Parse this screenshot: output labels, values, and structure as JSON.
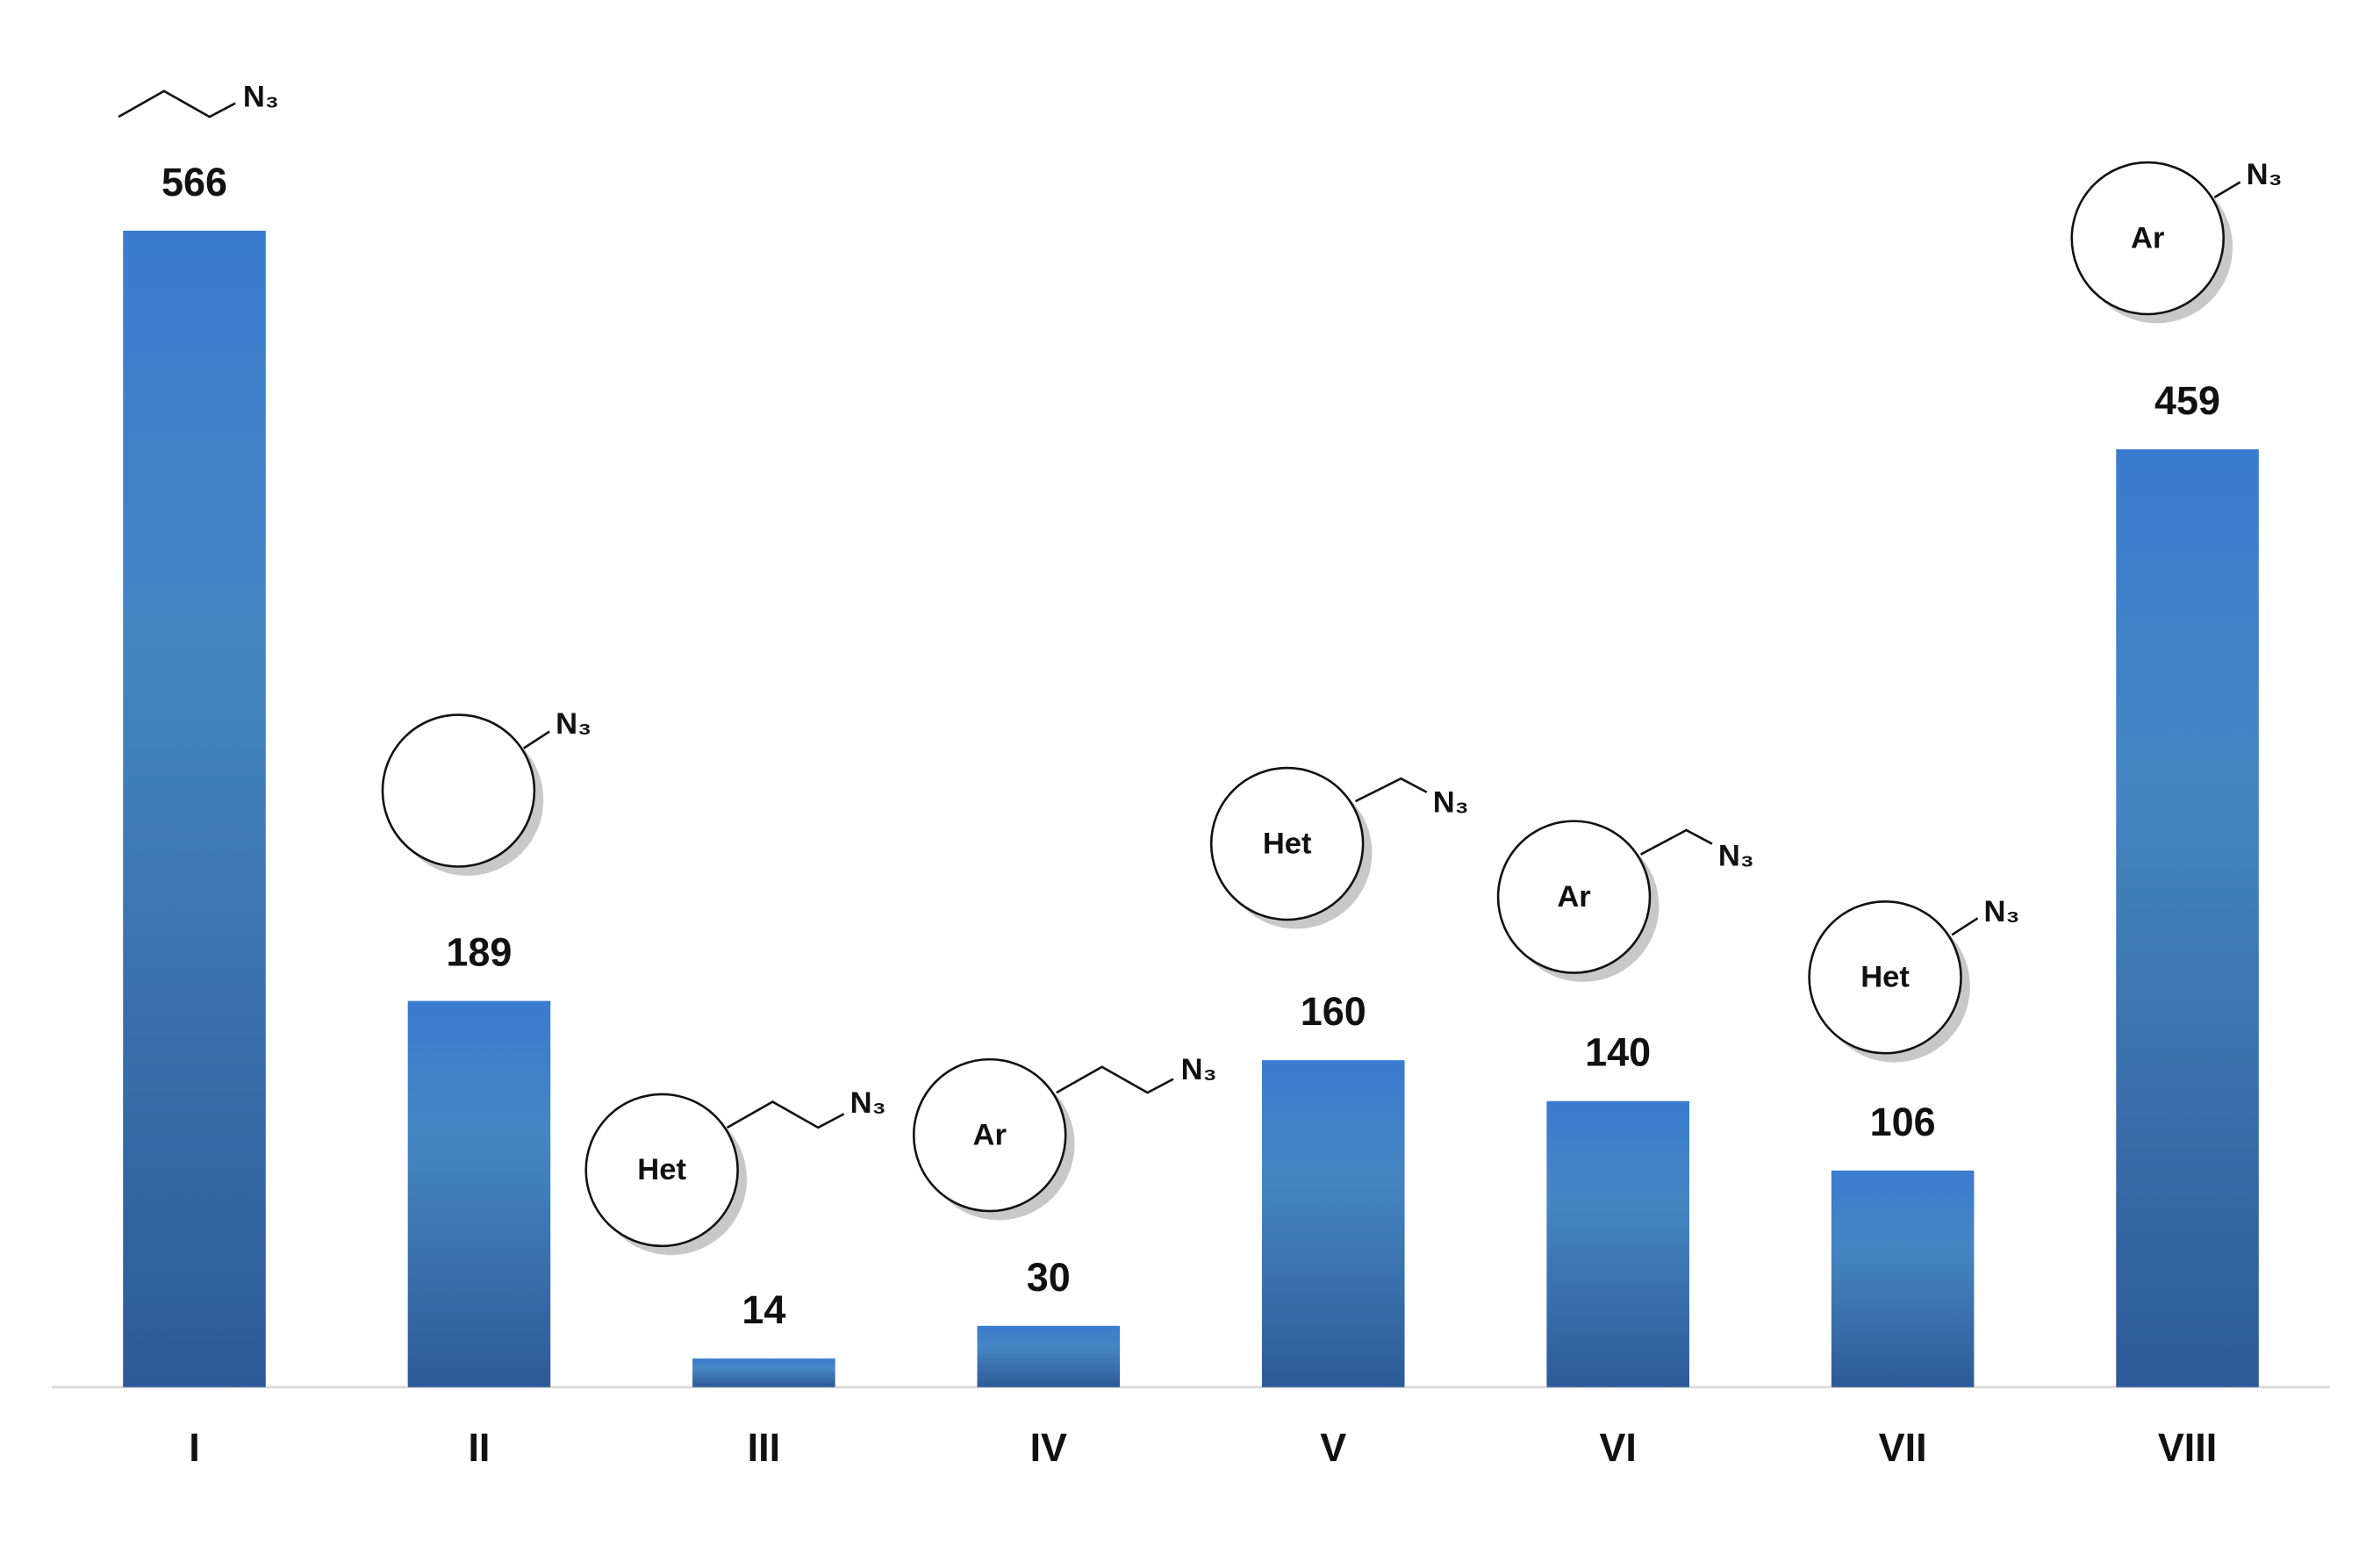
{
  "chart_data": {
    "type": "bar",
    "categories": [
      "I",
      "II",
      "III",
      "IV",
      "V",
      "VI",
      "VII",
      "VIII"
    ],
    "values": [
      566,
      189,
      14,
      30,
      160,
      140,
      106,
      459
    ],
    "structures": [
      {
        "azide": "N₃"
      },
      {
        "azide": "N₃"
      },
      {
        "ring": "Het",
        "azide": "N₃"
      },
      {
        "ring": "Ar",
        "azide": "N₃"
      },
      {
        "ring": "Het",
        "azide": "N₃"
      },
      {
        "ring": "Ar",
        "azide": "N₃"
      },
      {
        "ring": "Het",
        "azide": "N₃"
      },
      {
        "ring": "Ar",
        "azide": "N₃"
      }
    ],
    "color": "#3b79c4"
  }
}
